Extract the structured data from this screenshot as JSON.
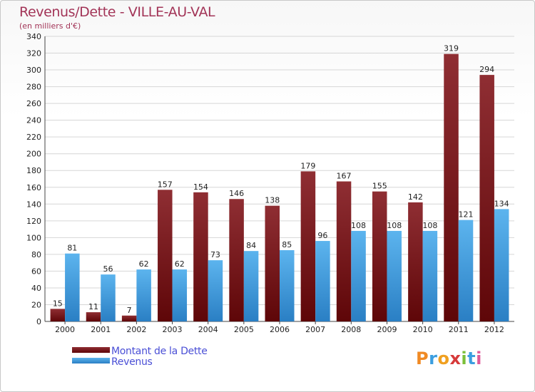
{
  "page": {
    "title": "Revenus/Dette - VILLE-AU-VAL",
    "subtitle": "(en milliers d'€)"
  },
  "chart_data": {
    "type": "bar",
    "title": "Revenus/Dette - VILLE-AU-VAL",
    "subtitle": "(en milliers d'€)",
    "categories": [
      "2000",
      "2001",
      "2002",
      "2003",
      "2004",
      "2005",
      "2006",
      "2007",
      "2008",
      "2009",
      "2010",
      "2011",
      "2012"
    ],
    "series": [
      {
        "name": "Montant de la Dette",
        "color": "#7a1a1e",
        "values": [
          15,
          11,
          7,
          157,
          154,
          146,
          138,
          179,
          167,
          155,
          142,
          319,
          294
        ]
      },
      {
        "name": "Revenus",
        "color": "#3f9fe0",
        "values": [
          81,
          56,
          62,
          62,
          73,
          84,
          85,
          96,
          108,
          108,
          108,
          121,
          134
        ]
      }
    ],
    "ylim": [
      0,
      340
    ],
    "yticks": [
      0,
      20,
      40,
      60,
      80,
      100,
      120,
      140,
      160,
      180,
      200,
      220,
      240,
      260,
      280,
      300,
      320,
      340
    ],
    "grid": true,
    "legend": "bottom-left",
    "data_labels": true
  },
  "legend": {
    "items": [
      {
        "label": "Montant de la Dette",
        "color": "#7a1a1e"
      },
      {
        "label": "Revenus",
        "color": "#3f9fe0"
      }
    ]
  },
  "logo": {
    "text": "Proxiti"
  }
}
